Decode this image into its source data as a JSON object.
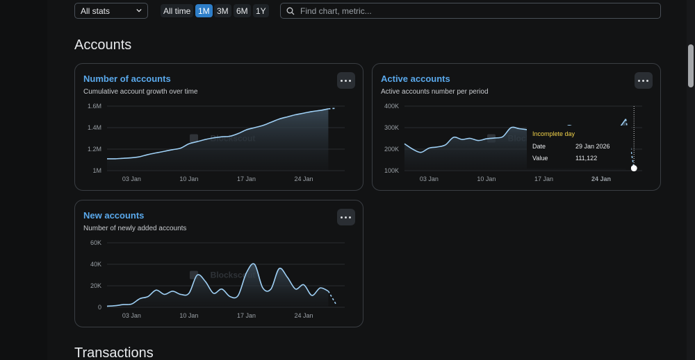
{
  "filters": {
    "section_select": "All stats",
    "intervals": [
      {
        "label": "All time",
        "active": false
      },
      {
        "label": "1M",
        "active": true
      },
      {
        "label": "3M",
        "active": false
      },
      {
        "label": "6M",
        "active": false
      },
      {
        "label": "1Y",
        "active": false
      }
    ],
    "search_placeholder": "Find chart, metric..."
  },
  "sections": {
    "accounts_title": "Accounts",
    "transactions_title": "Transactions"
  },
  "watermark": "Blockscout",
  "colors": {
    "accent": "#5aa9ec",
    "line": "#9fd0f5",
    "tooltip_title": "#f2d34a",
    "active_interval": "#2e7ec8"
  },
  "charts": {
    "number_of_accounts": {
      "title": "Number of accounts",
      "subtitle": "Cumulative account growth over time",
      "chart_data": {
        "type": "area",
        "y_ticks": [
          "1.6M",
          "1.4M",
          "1.2M",
          "1M"
        ],
        "x_ticks": [
          "03 Jan",
          "10 Jan",
          "17 Jan",
          "24 Jan"
        ],
        "ylim": [
          1.0,
          1.6
        ],
        "x_range": [
          -1,
          28
        ],
        "x": [
          -1,
          0,
          1,
          2,
          3,
          4,
          5,
          6,
          7,
          8,
          9,
          10,
          11,
          12,
          13,
          14,
          15,
          16,
          17,
          18,
          19,
          20,
          21,
          22,
          23,
          24,
          25,
          26,
          27
        ],
        "values": [
          1.11,
          1.11,
          1.115,
          1.12,
          1.13,
          1.15,
          1.165,
          1.18,
          1.195,
          1.21,
          1.25,
          1.27,
          1.29,
          1.305,
          1.315,
          1.32,
          1.345,
          1.38,
          1.4,
          1.42,
          1.45,
          1.48,
          1.5,
          1.52,
          1.535,
          1.55,
          1.56,
          1.575,
          1.58
        ],
        "incomplete_last": true
      }
    },
    "active_accounts": {
      "title": "Active accounts",
      "subtitle": "Active accounts number per period",
      "chart_data": {
        "type": "area",
        "y_ticks": [
          "400K",
          "300K",
          "200K",
          "100K"
        ],
        "x_ticks": [
          "03 Jan",
          "10 Jan",
          "17 Jan",
          "24 Jan"
        ],
        "ylim": [
          100000,
          400000
        ],
        "x_range": [
          -1,
          28
        ],
        "x": [
          -1,
          0,
          1,
          2,
          3,
          4,
          5,
          6,
          7,
          8,
          9,
          10,
          11,
          12,
          13,
          14,
          15,
          16,
          17,
          18,
          19,
          20,
          21,
          22,
          23,
          24,
          25,
          26,
          27
        ],
        "values": [
          225000,
          200000,
          185000,
          205000,
          210000,
          220000,
          255000,
          245000,
          250000,
          240000,
          248000,
          252000,
          258000,
          300000,
          295000,
          290000,
          280000,
          270000,
          265000,
          275000,
          310000,
          295000,
          290000,
          270000,
          275000,
          270000,
          290000,
          340000,
          111122
        ],
        "incomplete_last": true
      },
      "tooltip": {
        "title": "Incomplete day",
        "date_label": "Date",
        "date_value": "29 Jan 2026",
        "value_label": "Value",
        "value_value": "111,122"
      }
    },
    "new_accounts": {
      "title": "New accounts",
      "subtitle": "Number of newly added accounts",
      "chart_data": {
        "type": "area",
        "y_ticks": [
          "60K",
          "40K",
          "20K",
          "0"
        ],
        "x_ticks": [
          "03 Jan",
          "10 Jan",
          "17 Jan",
          "24 Jan"
        ],
        "ylim": [
          0,
          60000
        ],
        "x_range": [
          -1,
          28
        ],
        "x": [
          -1,
          0,
          1,
          2,
          3,
          4,
          5,
          6,
          7,
          8,
          9,
          10,
          11,
          12,
          13,
          14,
          15,
          16,
          17,
          18,
          19,
          20,
          21,
          22,
          23,
          24,
          25,
          26,
          27
        ],
        "values": [
          1000,
          1500,
          2500,
          3000,
          8000,
          10000,
          16000,
          12000,
          15000,
          12000,
          13000,
          30000,
          24000,
          13000,
          17000,
          10000,
          11000,
          32000,
          40000,
          18000,
          17000,
          36000,
          28000,
          17000,
          21000,
          11000,
          18000,
          15000,
          2000
        ],
        "incomplete_last": true
      }
    }
  }
}
